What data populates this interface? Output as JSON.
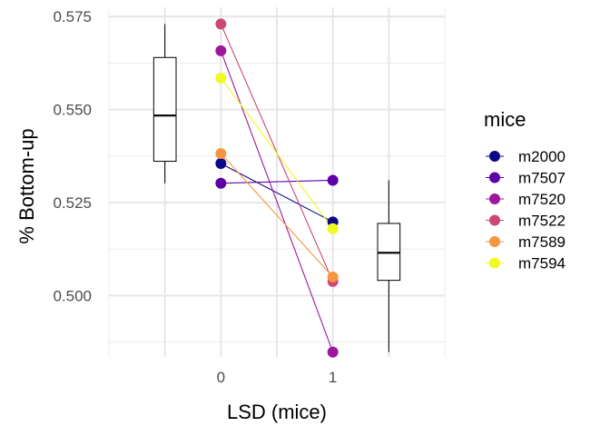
{
  "chart_data": {
    "type": "scatter",
    "xlabel": "LSD (mice)",
    "ylabel": "% Bottom-up",
    "x_ticks": [
      "0",
      "1"
    ],
    "y_ticks": [
      "0.500",
      "0.525",
      "0.550",
      "0.575"
    ],
    "ylim": [
      0.4835,
      0.5775
    ],
    "xlim": [
      -1.0,
      2.0
    ],
    "grid": true,
    "legend": {
      "title": "mice",
      "position": "right"
    },
    "series": [
      {
        "name": "m2000",
        "color": "#0d0887",
        "x": [
          0,
          1
        ],
        "y": [
          0.5355,
          0.5198
        ]
      },
      {
        "name": "m7507",
        "color": "#5c01a6",
        "x": [
          0,
          1
        ],
        "y": [
          0.5302,
          0.531
        ]
      },
      {
        "name": "m7520",
        "color": "#9c179e",
        "x": [
          0,
          1
        ],
        "y": [
          0.5658,
          0.4848
        ]
      },
      {
        "name": "m7522",
        "color": "#cc4778",
        "x": [
          0,
          1
        ],
        "y": [
          0.573,
          0.5038
        ]
      },
      {
        "name": "m7589",
        "color": "#f89540",
        "x": [
          0,
          1
        ],
        "y": [
          0.5382,
          0.505
        ]
      },
      {
        "name": "m7594",
        "color": "#f0f921",
        "x": [
          0,
          1
        ],
        "y": [
          0.5585,
          0.518
        ]
      }
    ],
    "boxplots": [
      {
        "x": -0.5,
        "whisker_low": 0.5302,
        "q1": 0.5361,
        "median": 0.5484,
        "q3": 0.564,
        "whisker_high": 0.573
      },
      {
        "x": 1.5,
        "whisker_low": 0.4848,
        "q1": 0.5041,
        "median": 0.5115,
        "q3": 0.5194,
        "whisker_high": 0.531
      }
    ]
  }
}
